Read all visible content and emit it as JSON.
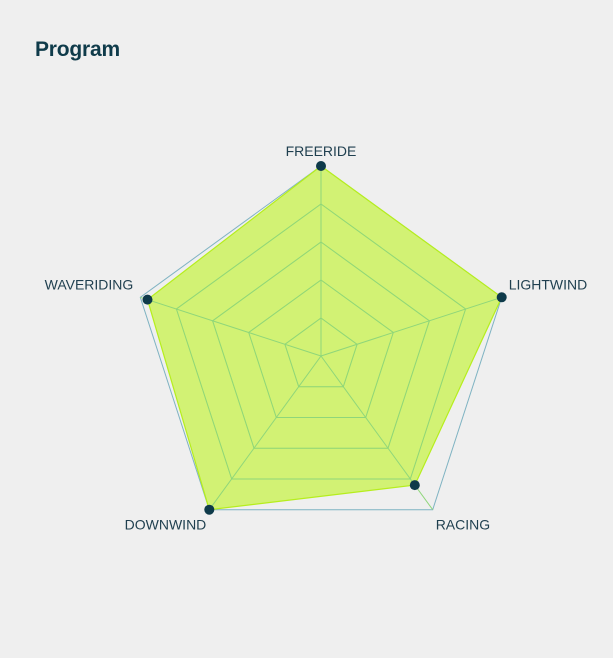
{
  "colors": {
    "background": "#efefef",
    "title": "#0f3b4a",
    "fill": "#ccf25e",
    "fill_stroke": "#b6ee1d",
    "grid": "#8fd67a",
    "outer": "#7fb3c2",
    "point": "#0e3a4a",
    "label": "#1f3f4f"
  },
  "chart_data": {
    "type": "radar",
    "title": "Program",
    "axes": [
      "FREERIDE",
      "LIGHTWIND",
      "RACING",
      "DOWNWIND",
      "WAVERIDING"
    ],
    "values": [
      5,
      5,
      4.2,
      5,
      4.8
    ],
    "max": 5,
    "grid_levels": 5
  }
}
